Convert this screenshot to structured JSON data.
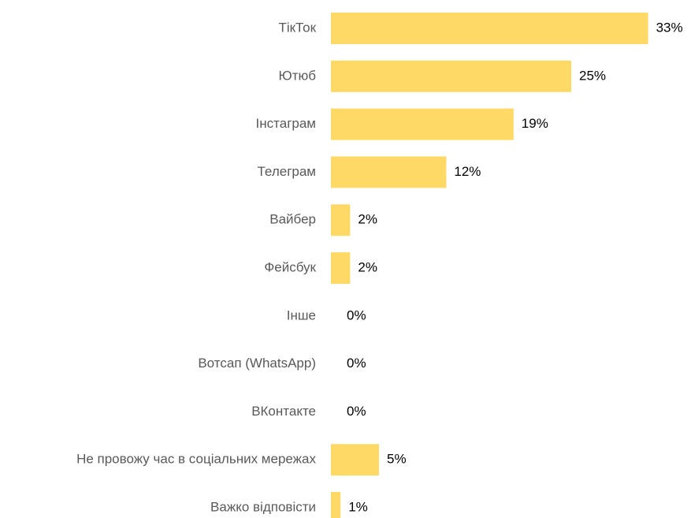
{
  "chart_data": {
    "type": "bar",
    "orientation": "horizontal",
    "bar_color": "#ffd966",
    "categories": [
      "ТікТок",
      "Ютюб",
      "Інстаграм",
      "Телеграм",
      "Вайбер",
      "Фейсбук",
      "Інше",
      "Вотсап (WhatsApp)",
      "ВКонтакте",
      "Не провожу час в соціальних мережах",
      "Важко відповісти"
    ],
    "values": [
      33,
      25,
      19,
      12,
      2,
      2,
      0,
      0,
      0,
      5,
      1
    ],
    "value_labels": [
      "33%",
      "25%",
      "19%",
      "12%",
      "2%",
      "2%",
      "0%",
      "0%",
      "0%",
      "5%",
      "1%"
    ],
    "title": "",
    "xlabel": "",
    "ylabel": "",
    "grid": false,
    "legend": "none"
  }
}
